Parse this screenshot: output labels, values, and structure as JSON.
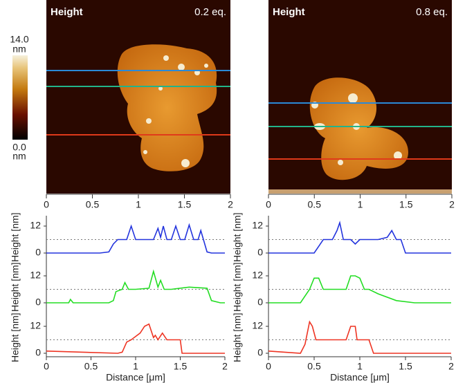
{
  "colorbar": {
    "ticks": [
      {
        "value": 0,
        "label": "0.0"
      },
      {
        "value": 14,
        "label": "14.0"
      }
    ],
    "unit": "nm"
  },
  "images": [
    {
      "label": "Height",
      "condition": "0.2 eq.",
      "xlim": [
        0,
        2
      ],
      "xticks": [
        0,
        0.5,
        1,
        1.5,
        2
      ]
    },
    {
      "label": "Height",
      "condition": "0.8 eq.",
      "xlim": [
        0,
        2
      ],
      "xticks": [
        0,
        0.5,
        1,
        1.5,
        2
      ]
    }
  ],
  "chart_data": [
    {
      "type": "line",
      "xlabel": "Distance [μm]",
      "ylabel": "Height [nm]",
      "xlim": [
        0,
        2
      ],
      "xticks": [
        0,
        0.5,
        1,
        1.5,
        2
      ],
      "panels": [
        {
          "color": "#2233dd",
          "ylim": [
            -1,
            15
          ],
          "yticks": [
            0,
            12
          ],
          "reference": 6,
          "x": [
            0,
            0.3,
            0.6,
            0.7,
            0.75,
            0.8,
            0.9,
            0.95,
            1.0,
            1.2,
            1.25,
            1.28,
            1.31,
            1.35,
            1.4,
            1.45,
            1.5,
            1.55,
            1.6,
            1.65,
            1.7,
            1.73,
            1.76,
            1.8,
            1.85,
            2
          ],
          "values": [
            0,
            0,
            0,
            0.5,
            4,
            6,
            6,
            12,
            6,
            6,
            11,
            7,
            12,
            6,
            6,
            12,
            6,
            6,
            12.5,
            6,
            6,
            10,
            6,
            0.5,
            0,
            0
          ]
        },
        {
          "color": "#22dd22",
          "ylim": [
            -1,
            15
          ],
          "yticks": [
            0,
            12
          ],
          "reference": 6,
          "x": [
            0,
            0.25,
            0.27,
            0.3,
            0.7,
            0.75,
            0.78,
            0.85,
            0.88,
            0.92,
            1.0,
            1.15,
            1.2,
            1.25,
            1.28,
            1.32,
            1.4,
            1.6,
            1.8,
            1.85,
            1.95,
            2
          ],
          "values": [
            0,
            0,
            1.5,
            0,
            0,
            1,
            5,
            6,
            9,
            6,
            6,
            6.5,
            14,
            7,
            10,
            6,
            6,
            7,
            6.5,
            1,
            0,
            0
          ]
        },
        {
          "color": "#ee3322",
          "ylim": [
            -1,
            15
          ],
          "yticks": [
            0,
            12
          ],
          "reference": 6,
          "x": [
            0,
            0.8,
            0.85,
            0.9,
            0.95,
            1.05,
            1.1,
            1.15,
            1.2,
            1.22,
            1.25,
            1.3,
            1.35,
            1.5,
            1.52,
            1.6,
            2
          ],
          "values": [
            1,
            0,
            0.5,
            5,
            6,
            9,
            12,
            13,
            7,
            8,
            6,
            9,
            6,
            6,
            0,
            0,
            0
          ]
        }
      ]
    },
    {
      "type": "line",
      "xlabel": "Distance [μm]",
      "ylabel": "Height [nm]",
      "xlim": [
        0,
        2
      ],
      "xticks": [
        0,
        0.5,
        1,
        1.5,
        2
      ],
      "panels": [
        {
          "color": "#2233dd",
          "ylim": [
            -1,
            15
          ],
          "yticks": [
            0,
            12
          ],
          "reference": 6,
          "x": [
            0,
            0.5,
            0.55,
            0.6,
            0.7,
            0.75,
            0.78,
            0.82,
            0.9,
            0.95,
            1.0,
            1.2,
            1.3,
            1.35,
            1.4,
            1.45,
            1.5,
            2
          ],
          "values": [
            0,
            0,
            3,
            6,
            6,
            10,
            13.5,
            6,
            6,
            4,
            6,
            6,
            7,
            10,
            6,
            6,
            0,
            0
          ]
        },
        {
          "color": "#22dd22",
          "ylim": [
            -1,
            15
          ],
          "yticks": [
            0,
            12
          ],
          "reference": 6,
          "x": [
            0,
            0.35,
            0.45,
            0.5,
            0.55,
            0.6,
            0.65,
            0.85,
            0.9,
            0.95,
            1.0,
            1.05,
            1.1,
            1.2,
            1.4,
            1.6,
            2
          ],
          "values": [
            0,
            0,
            6,
            11,
            11,
            6,
            6,
            6,
            12,
            12,
            11,
            6,
            6,
            4,
            1,
            0,
            0
          ]
        },
        {
          "color": "#ee3322",
          "ylim": [
            -1,
            15
          ],
          "yticks": [
            0,
            12
          ],
          "reference": 6,
          "x": [
            0,
            0.35,
            0.4,
            0.45,
            0.48,
            0.52,
            0.55,
            0.85,
            0.9,
            0.95,
            0.97,
            1.05,
            1.1,
            1.15,
            1.6,
            2
          ],
          "values": [
            1,
            0,
            4,
            14,
            12,
            6,
            6,
            6,
            12,
            12,
            6,
            6,
            6,
            0,
            0,
            0
          ]
        }
      ]
    }
  ]
}
